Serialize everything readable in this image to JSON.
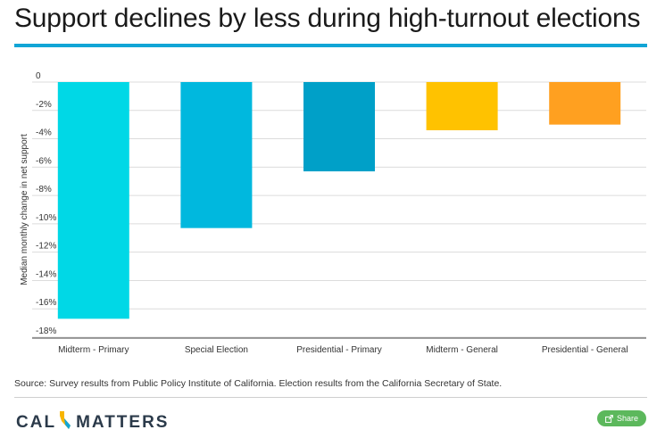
{
  "title": "Support declines by less during high-turnout elections",
  "source": "Source: Survey results from Public Policy Institute of California. Election results from the California Secretary of State.",
  "logo": {
    "left": "CAL",
    "right": "MATTERS"
  },
  "share_label": "Share",
  "colors": {
    "title_rule": "#12a5d6",
    "bars": [
      "#00d8e6",
      "#00b8de",
      "#00a0c8",
      "#ffc200",
      "#ffa020"
    ],
    "share": "#5cb85c"
  },
  "chart_data": {
    "type": "bar",
    "ylabel": "Median monthly change in net support",
    "xlabel": "",
    "categories": [
      "Midterm - Primary",
      "Special Election",
      "Presidential - Primary",
      "Midterm - General",
      "Presidential - General"
    ],
    "values": [
      -16.7,
      -10.3,
      -6.3,
      -3.4,
      -3.0
    ],
    "ylim": [
      -18,
      0
    ],
    "yticks": [
      0,
      -2,
      -4,
      -6,
      -8,
      -10,
      -12,
      -14,
      -16,
      -18
    ],
    "ytick_labels": [
      "0",
      "-2%",
      "-4%",
      "-6%",
      "-8%",
      "-10%",
      "-12%",
      "-14%",
      "-16%",
      "-18%"
    ],
    "grid": true
  }
}
